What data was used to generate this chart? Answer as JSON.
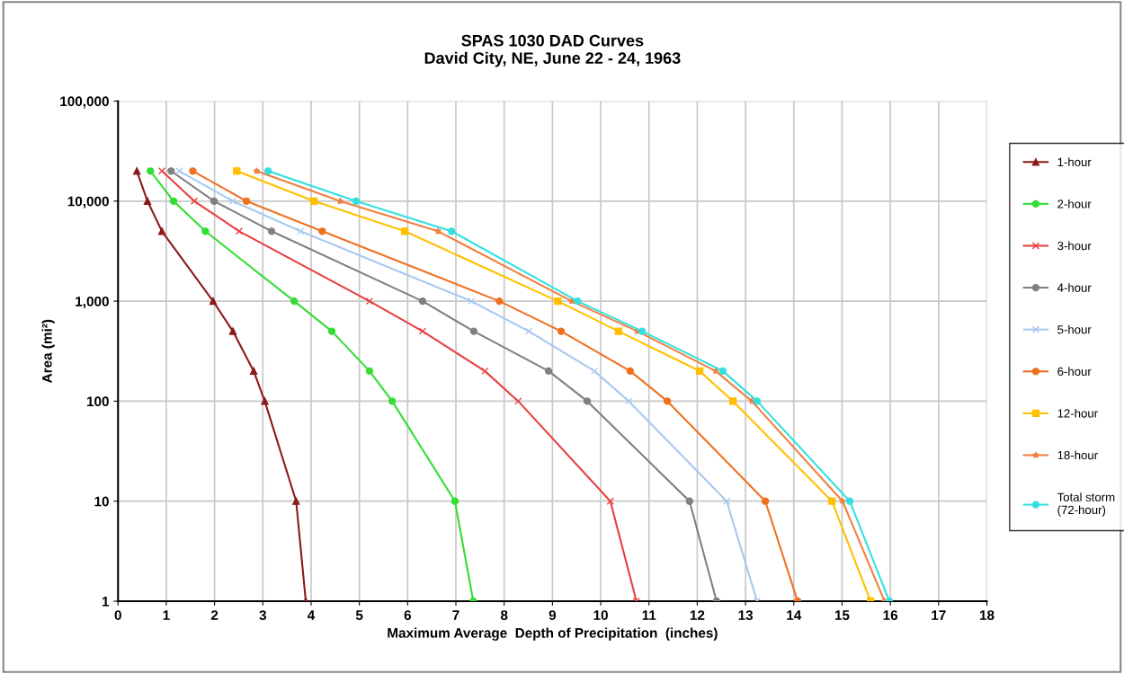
{
  "chart_data": {
    "type": "line",
    "title": "SPAS 1030 DAD Curves\nDavid City, NE, June 22 - 24, 1963",
    "xlabel": "Maximum Average  Depth of Precipitation  (inches)",
    "ylabel": "Area (mi²)",
    "log": "y",
    "grid": true,
    "legend": "right",
    "line_style": "solid",
    "xlim": [
      0,
      18
    ],
    "xticks": [
      0,
      1,
      2,
      3,
      4,
      5,
      6,
      7,
      8,
      9,
      10,
      11,
      12,
      13,
      14,
      15,
      16,
      17,
      18
    ],
    "ylim": [
      1,
      100000
    ],
    "yticks": [
      {
        "value": 1,
        "label": "1"
      },
      {
        "value": 10,
        "label": "10"
      },
      {
        "value": 100,
        "label": "100"
      },
      {
        "value": 1000,
        "label": "1,000"
      },
      {
        "value": 10000,
        "label": "10,000"
      },
      {
        "value": 100000,
        "label": "100,000"
      }
    ],
    "series": [
      {
        "name": "1-hour",
        "color": "#8b1a1a",
        "marker": "triangle",
        "x": [
          0.39,
          0.61,
          0.91,
          1.97,
          2.38,
          2.81,
          3.04,
          3.69,
          3.89
        ],
        "values": [
          20000,
          10000,
          5000,
          1000,
          500,
          200,
          100,
          10,
          1
        ]
      },
      {
        "name": "2-hour",
        "color": "#33dd33",
        "marker": "circle",
        "x": [
          0.67,
          1.15,
          1.81,
          3.65,
          4.43,
          5.21,
          5.68,
          6.98,
          7.36
        ],
        "values": [
          20000,
          10000,
          5000,
          1000,
          500,
          200,
          100,
          10,
          1
        ]
      },
      {
        "name": "3-hour",
        "color": "#e84040",
        "marker": "cross",
        "x": [
          0.91,
          1.58,
          2.51,
          5.21,
          6.31,
          7.6,
          8.29,
          10.2,
          10.74
        ],
        "values": [
          20000,
          10000,
          5000,
          1000,
          500,
          200,
          100,
          10,
          1
        ]
      },
      {
        "name": "4-hour",
        "color": "#808080",
        "marker": "circle",
        "x": [
          1.1,
          1.99,
          3.18,
          6.31,
          7.37,
          8.92,
          9.72,
          11.84,
          12.4
        ],
        "values": [
          20000,
          10000,
          5000,
          1000,
          500,
          200,
          100,
          10,
          1
        ]
      },
      {
        "name": "5-hour",
        "color": "#a8c8f0",
        "marker": "cross",
        "x": [
          1.27,
          2.38,
          3.78,
          7.32,
          8.51,
          9.87,
          10.58,
          12.61,
          13.24
        ],
        "values": [
          20000,
          10000,
          5000,
          1000,
          500,
          200,
          100,
          10,
          1
        ]
      },
      {
        "name": "6-hour",
        "color": "#f07020",
        "marker": "circle",
        "x": [
          1.55,
          2.66,
          4.23,
          7.9,
          9.18,
          10.61,
          11.38,
          13.41,
          14.08
        ],
        "values": [
          20000,
          10000,
          5000,
          1000,
          500,
          200,
          100,
          10,
          1
        ]
      },
      {
        "name": "12-hour",
        "color": "#ffc000",
        "marker": "square",
        "x": [
          2.46,
          4.06,
          5.94,
          9.11,
          10.37,
          12.05,
          12.74,
          14.79,
          15.59
        ],
        "values": [
          20000,
          10000,
          5000,
          1000,
          500,
          200,
          100,
          10,
          1
        ]
      },
      {
        "name": "18-hour",
        "color": "#f08040",
        "marker": "star",
        "x": [
          2.87,
          4.6,
          6.63,
          9.4,
          10.76,
          12.38,
          13.13,
          15.01,
          15.88
        ],
        "values": [
          20000,
          10000,
          5000,
          1000,
          500,
          200,
          100,
          10,
          1
        ]
      },
      {
        "name": "Total storm\n(72-hour)",
        "color": "#33e0e0",
        "marker": "circle",
        "x": [
          3.11,
          4.93,
          6.91,
          9.52,
          10.86,
          12.53,
          13.24,
          15.16,
          15.98
        ],
        "values": [
          20000,
          10000,
          5000,
          1000,
          500,
          200,
          100,
          10,
          1
        ]
      }
    ]
  }
}
